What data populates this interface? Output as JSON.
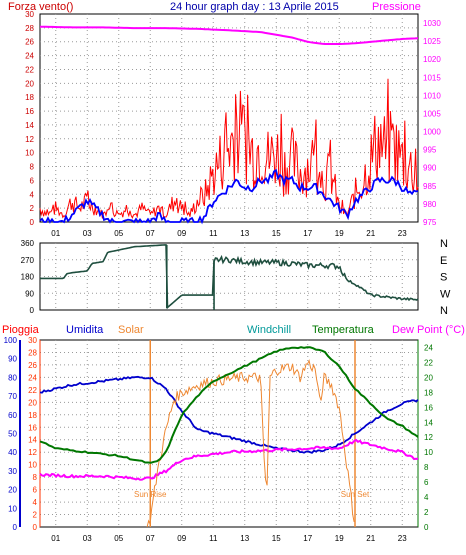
{
  "colors": {
    "wind": "#ff0000",
    "gust": "#0000ff",
    "pressure": "#ff00ff",
    "direction": "#1f4f3f",
    "humidity": "#0000cc",
    "solar": "#ee8833",
    "windchill": "#009999",
    "temperature": "#007700",
    "dewpoint": "#ff00ff",
    "rain": "#ff3300",
    "axis_left_red": "#cc0000",
    "axis_blue": "#0000cc",
    "axis_green": "#007700",
    "grid": "#9a9a9a",
    "frame": "#000000",
    "title": "#0000aa"
  },
  "chart_data": [
    {
      "type": "line",
      "panel": "wind",
      "title": "24 hour graph day : 13 Aprile 2015",
      "ylabel_left": "Forza vento()",
      "ylabel_right": "Pressione",
      "x_ticks": [
        "01",
        "03",
        "05",
        "07",
        "09",
        "11",
        "13",
        "15",
        "17",
        "19",
        "21",
        "23"
      ],
      "y_left_ticks": [
        "0",
        "2",
        "4",
        "6",
        "8",
        "10",
        "12",
        "14",
        "16",
        "18",
        "20",
        "22",
        "24",
        "26",
        "28",
        "30"
      ],
      "y_left_range": [
        0,
        30
      ],
      "y_right_ticks": [
        "975",
        "980",
        "985",
        "990",
        "995",
        "1000",
        "1005",
        "1010",
        "1015",
        "1020",
        "1025",
        "1030"
      ],
      "y_right_range": [
        975,
        1032.5
      ],
      "x_range": [
        0,
        24
      ],
      "grid": true,
      "series": [
        {
          "role": "wind",
          "x": [
            0,
            0.5,
            1,
            1.5,
            2,
            2.5,
            3,
            3.5,
            4,
            4.5,
            5,
            5.5,
            6,
            6.5,
            7,
            7.5,
            8,
            8.5,
            9,
            9.5,
            10,
            10.5,
            11,
            11.5,
            12,
            12.5,
            13,
            13.5,
            14,
            14.5,
            15,
            15.5,
            16,
            16.5,
            17,
            17.5,
            18,
            18.5,
            19,
            19.5,
            20,
            20.5,
            21,
            21.5,
            22,
            22.5,
            23,
            23.5,
            24
          ],
          "y": [
            2,
            1,
            2,
            1,
            3,
            2,
            3,
            2,
            1,
            2,
            1,
            2,
            1,
            2,
            1,
            2,
            1,
            3,
            2,
            1,
            3,
            4,
            7,
            9,
            11,
            13,
            12,
            10,
            11,
            9,
            10,
            8,
            9,
            7,
            8,
            9,
            6,
            7,
            2,
            1,
            4,
            6,
            9,
            12,
            10,
            11,
            9,
            8,
            6
          ]
        },
        {
          "role": "gust",
          "x": [
            0,
            0.5,
            1,
            1.5,
            2,
            2.5,
            3,
            3.5,
            4,
            4.5,
            5,
            5.5,
            6,
            6.5,
            7,
            7.5,
            8,
            8.5,
            9,
            9.5,
            10,
            10.5,
            11,
            11.5,
            12,
            12.5,
            13,
            13.5,
            14,
            14.5,
            15,
            15.5,
            16,
            16.5,
            17,
            17.5,
            18,
            18.5,
            19,
            19.5,
            20,
            20.5,
            21,
            21.5,
            22,
            22.5,
            23,
            23.5,
            24
          ],
          "y": [
            0,
            0,
            0,
            0,
            1,
            2,
            3,
            2,
            1,
            0,
            0,
            0,
            0,
            0,
            0,
            1,
            0,
            0,
            0,
            0,
            0,
            1,
            3,
            4,
            5,
            6,
            5,
            5,
            6,
            6,
            7,
            6,
            6,
            5,
            5,
            5,
            4,
            3,
            2,
            1,
            3,
            4,
            5,
            6,
            6,
            6,
            5,
            4,
            4
          ]
        },
        {
          "role": "pressure",
          "x": [
            0,
            2,
            4,
            6,
            8,
            10,
            12,
            14,
            16,
            17,
            18,
            19,
            20,
            21,
            22,
            23,
            24
          ],
          "y": [
            1029,
            1028.8,
            1028.8,
            1028.6,
            1028.6,
            1028.4,
            1028,
            1027.5,
            1026,
            1024.8,
            1024.2,
            1024.2,
            1024.4,
            1024.8,
            1025.2,
            1025.6,
            1025.8
          ]
        }
      ]
    },
    {
      "type": "line",
      "panel": "direction",
      "y_left_ticks": [
        "0",
        "90",
        "180",
        "270",
        "360"
      ],
      "y_left_range": [
        0,
        360
      ],
      "y_right_ticks": [
        "N",
        "W",
        "S",
        "E",
        "N"
      ],
      "x_range": [
        0,
        24
      ],
      "grid": true,
      "series": [
        {
          "role": "direction",
          "x": [
            0,
            1.5,
            1.7,
            2,
            3,
            3.3,
            4,
            4.3,
            6,
            8,
            8.05,
            9,
            9.5,
            11,
            11.05,
            12,
            13,
            14,
            15,
            16,
            17,
            18,
            19,
            19.5,
            20,
            21,
            22,
            23,
            24
          ],
          "y": [
            170,
            170,
            195,
            200,
            210,
            250,
            260,
            310,
            340,
            350,
            10,
            80,
            80,
            80,
            270,
            270,
            260,
            255,
            255,
            250,
            240,
            240,
            235,
            160,
            140,
            80,
            70,
            60,
            55
          ]
        }
      ]
    },
    {
      "type": "line",
      "panel": "temperature",
      "labels": [
        "Pioggia",
        "Umidita",
        "Solar",
        "Windchill",
        "Temperatura",
        "Dew Point (°C)"
      ],
      "annotations": [
        "Sun Rise",
        "Sun Set"
      ],
      "y_left_red_ticks": [
        "0",
        "2",
        "4",
        "6",
        "8",
        "10",
        "12",
        "14",
        "16",
        "18",
        "20",
        "22",
        "24",
        "26",
        "28",
        "30"
      ],
      "y_left_blue_ticks": [
        "0",
        "10",
        "20",
        "30",
        "40",
        "50",
        "60",
        "70",
        "80",
        "90",
        "100"
      ],
      "y_right_ticks": [
        "0",
        "2",
        "4",
        "6",
        "8",
        "10",
        "12",
        "14",
        "16",
        "18",
        "20",
        "22",
        "24"
      ],
      "y_right_range": [
        0,
        25
      ],
      "x_range": [
        0,
        24
      ],
      "grid": true,
      "series": [
        {
          "role": "humidity",
          "x": [
            0,
            2,
            4,
            6,
            7,
            8,
            9,
            10,
            11,
            12,
            13,
            14,
            15,
            16,
            17,
            18,
            19,
            20,
            21,
            22,
            23,
            24
          ],
          "y": [
            72,
            76,
            78,
            80,
            80,
            74,
            62,
            52,
            50,
            48,
            46,
            44,
            42,
            41,
            40,
            41,
            44,
            50,
            56,
            62,
            66,
            68
          ]
        },
        {
          "role": "temperature",
          "x": [
            0,
            1,
            3,
            5,
            6,
            7,
            7.5,
            8,
            9,
            10,
            11,
            12,
            13,
            14,
            15,
            16,
            17,
            18,
            19,
            20,
            21,
            22,
            23,
            24
          ],
          "y": [
            11.5,
            10.5,
            10,
            9.5,
            9,
            8.5,
            8.8,
            10,
            15,
            17.5,
            19.5,
            20.5,
            21.5,
            22.5,
            23.5,
            24,
            24,
            23.5,
            21.5,
            18.5,
            16.5,
            14.5,
            13.5,
            12
          ]
        },
        {
          "role": "dewpoint",
          "x": [
            0,
            2,
            4,
            6,
            7,
            8,
            9,
            10,
            12,
            14,
            16,
            18,
            19,
            20,
            21,
            22,
            23,
            24
          ],
          "y": [
            7,
            6.8,
            6.8,
            6.5,
            6.5,
            7.5,
            9,
            9.5,
            10,
            10.2,
            10.4,
            10.6,
            10.5,
            11.5,
            11,
            10.5,
            10,
            9
          ]
        },
        {
          "role": "solar",
          "x": [
            6.8,
            7,
            7.5,
            8,
            8.5,
            9,
            10,
            11,
            12,
            13,
            14,
            14.2,
            14.4,
            14.6,
            15,
            16,
            16.5,
            17,
            17.5,
            17.8,
            18,
            18.5,
            19,
            19.5,
            20
          ],
          "y": [
            0,
            1,
            8,
            13,
            17,
            18,
            19,
            19.5,
            19.8,
            20,
            20,
            10,
            4,
            20,
            21,
            21.5,
            20,
            22,
            21,
            16,
            20,
            19,
            16,
            8,
            0
          ]
        },
        {
          "role": "sunlines",
          "x": [
            7,
            20
          ],
          "y": [
            25,
            25
          ]
        }
      ]
    }
  ]
}
